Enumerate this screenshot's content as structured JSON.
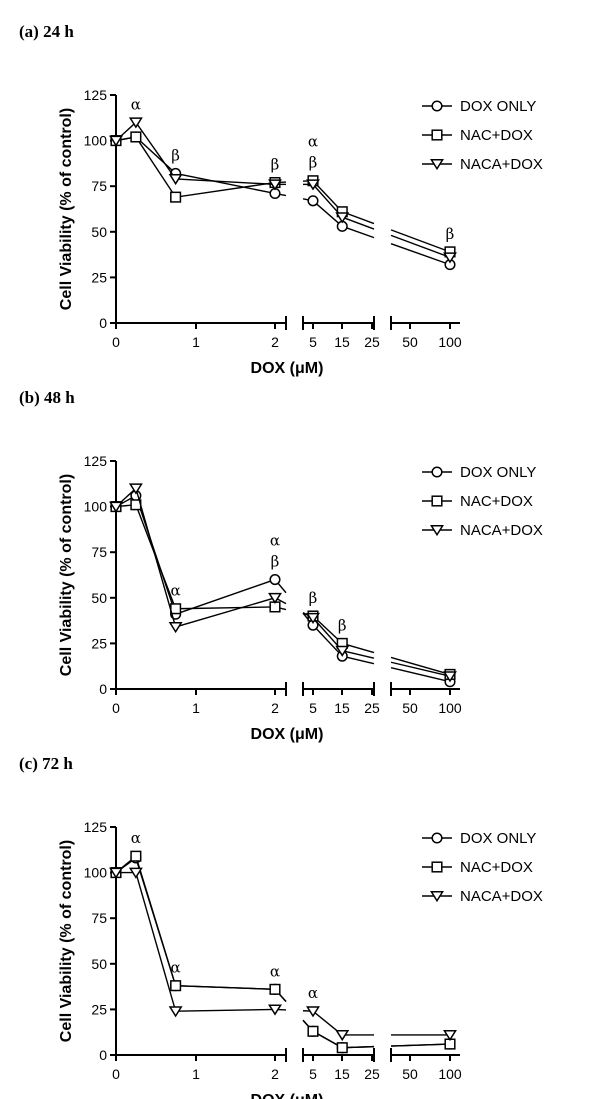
{
  "chart_data": [
    {
      "type": "line",
      "title": "(a) 24 h",
      "xlabel": "DOX (μM)",
      "ylabel": "Cell Viability (% of control)",
      "ylim": [
        0,
        125
      ],
      "yticks": [
        "0",
        "25",
        "50",
        "75",
        "100",
        "125"
      ],
      "x": [
        0,
        0.25,
        0.75,
        2,
        5,
        20,
        100
      ],
      "xtick_labels": [
        "0",
        "1",
        "2",
        "5",
        "15",
        "25",
        "50",
        "100"
      ],
      "x_breaks": [
        "2-5",
        "25-50"
      ],
      "legend": "top-right",
      "series": [
        {
          "name": "DOX ONLY",
          "marker": "circle",
          "values": [
            100,
            102,
            82,
            71,
            67,
            53,
            32
          ]
        },
        {
          "name": "NAC+DOX",
          "marker": "square",
          "values": [
            100,
            102,
            69,
            77,
            78,
            61,
            39
          ]
        },
        {
          "name": "NACA+DOX",
          "marker": "triangle-down",
          "values": [
            100,
            110,
            79,
            76,
            76,
            58,
            36
          ]
        }
      ],
      "annotations": [
        {
          "x": 0.25,
          "y": 110,
          "text": "α"
        },
        {
          "x": 0.75,
          "y": 82,
          "text": "β"
        },
        {
          "x": 2,
          "y": 77,
          "text": "β"
        },
        {
          "x": 5,
          "y": 78,
          "text": "α\nβ"
        },
        {
          "x": 100,
          "y": 39,
          "text": "β"
        }
      ]
    },
    {
      "type": "line",
      "title": "(b) 48 h",
      "xlabel": "DOX (μM)",
      "ylabel": "Cell Viability (% of control)",
      "ylim": [
        0,
        125
      ],
      "yticks": [
        "0",
        "25",
        "50",
        "75",
        "100",
        "125"
      ],
      "x": [
        0,
        0.25,
        0.75,
        2,
        5,
        20,
        100
      ],
      "xtick_labels": [
        "0",
        "1",
        "2",
        "5",
        "15",
        "25",
        "50",
        "100"
      ],
      "x_breaks": [
        "2-5",
        "25-50"
      ],
      "legend": "top-right",
      "series": [
        {
          "name": "DOX ONLY",
          "marker": "circle",
          "values": [
            100,
            106,
            41,
            60,
            35,
            18,
            4
          ]
        },
        {
          "name": "NAC+DOX",
          "marker": "square",
          "values": [
            100,
            101,
            44,
            45,
            40,
            25,
            8
          ]
        },
        {
          "name": "NACA+DOX",
          "marker": "triangle-down",
          "values": [
            100,
            110,
            34,
            50,
            39,
            21,
            7
          ]
        }
      ],
      "annotations": [
        {
          "x": 0.75,
          "y": 44,
          "text": "α"
        },
        {
          "x": 2,
          "y": 60,
          "text": "α\nβ"
        },
        {
          "x": 5,
          "y": 40,
          "text": "β"
        },
        {
          "x": 20,
          "y": 25,
          "text": "β"
        }
      ]
    },
    {
      "type": "line",
      "title": "(c) 72 h",
      "xlabel": "DOX (μM)",
      "ylabel": "Cell Viability (% of control)",
      "ylim": [
        0,
        125
      ],
      "yticks": [
        "0",
        "25",
        "50",
        "75",
        "100",
        "125"
      ],
      "x": [
        0,
        0.25,
        0.75,
        2,
        5,
        20,
        100
      ],
      "xtick_labels": [
        "0",
        "1",
        "2",
        "5",
        "15",
        "25",
        "50",
        "100"
      ],
      "x_breaks": [
        "2-5",
        "25-50"
      ],
      "legend": "top-right",
      "series": [
        {
          "name": "DOX ONLY",
          "marker": "circle",
          "values": [
            100,
            108,
            38,
            36,
            13,
            4,
            6
          ]
        },
        {
          "name": "NAC+DOX",
          "marker": "square",
          "values": [
            100,
            109,
            38,
            36,
            13,
            4,
            6
          ]
        },
        {
          "name": "NACA+DOX",
          "marker": "triangle-down",
          "values": [
            100,
            100,
            24,
            25,
            24,
            11,
            11
          ]
        }
      ],
      "annotations": [
        {
          "x": 0.25,
          "y": 109,
          "text": "α"
        },
        {
          "x": 0.75,
          "y": 38,
          "text": "α"
        },
        {
          "x": 2,
          "y": 36,
          "text": "α"
        },
        {
          "x": 5,
          "y": 24,
          "text": "α"
        }
      ]
    }
  ]
}
